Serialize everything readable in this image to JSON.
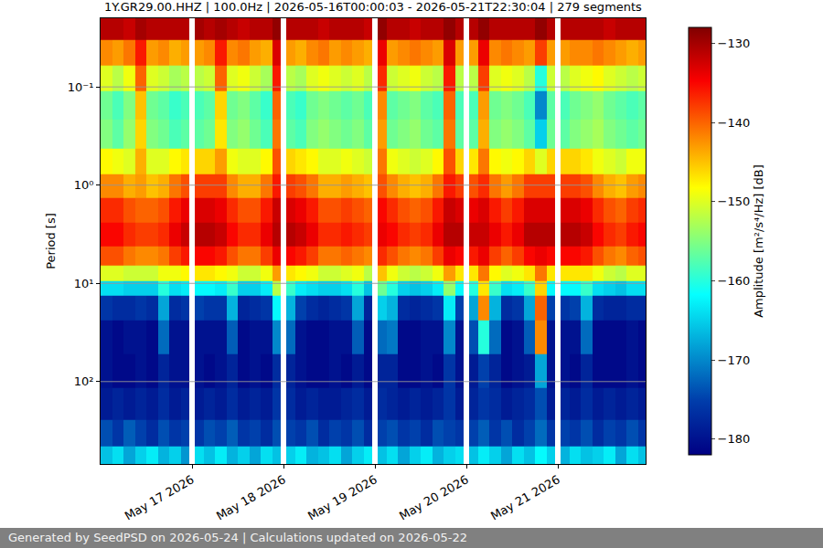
{
  "chart_data": {
    "type": "heatmap",
    "title": "1Y.GR29.00.HHZ | 100.0Hz | 2026-05-16T00:00:03 - 2026-05-21T22:30:04 | 279 segments",
    "y_label": "Period [s]",
    "log": "y",
    "grid": true,
    "x": [
      "2026-05-16 01:30",
      "2026-05-16 04:30",
      "2026-05-16 07:30",
      "2026-05-16 10:30",
      "2026-05-16 13:30",
      "2026-05-16 16:30",
      "2026-05-16 19:30",
      "2026-05-16 22:30",
      "2026-05-17 00:00",
      "2026-05-17 01:30",
      "2026-05-17 04:30",
      "2026-05-17 07:30",
      "2026-05-17 10:30",
      "2026-05-17 13:30",
      "2026-05-17 16:30",
      "2026-05-17 19:30",
      "2026-05-17 22:30",
      "2026-05-18 00:00",
      "2026-05-18 01:30",
      "2026-05-18 04:30",
      "2026-05-18 07:30",
      "2026-05-18 10:30",
      "2026-05-18 13:30",
      "2026-05-18 16:30",
      "2026-05-18 19:30",
      "2026-05-18 22:30",
      "2026-05-19 00:00",
      "2026-05-19 01:30",
      "2026-05-19 04:30",
      "2026-05-19 07:30",
      "2026-05-19 10:30",
      "2026-05-19 13:30",
      "2026-05-19 16:30",
      "2026-05-19 19:30",
      "2026-05-19 22:30",
      "2026-05-20 00:00",
      "2026-05-20 01:30",
      "2026-05-20 04:30",
      "2026-05-20 07:30",
      "2026-05-20 10:30",
      "2026-05-20 13:30",
      "2026-05-20 16:30",
      "2026-05-20 19:30",
      "2026-05-20 22:30",
      "2026-05-21 00:00",
      "2026-05-21 01:30",
      "2026-05-21 04:30",
      "2026-05-21 07:30",
      "2026-05-21 10:30",
      "2026-05-21 13:30",
      "2026-05-21 16:30",
      "2026-05-21 19:30",
      "2026-05-21 22:30"
    ],
    "y": [
      0.025,
      0.045,
      0.08,
      0.15,
      0.3,
      0.6,
      1,
      1.8,
      3.2,
      5.5,
      8,
      11,
      16,
      35,
      80,
      170,
      350,
      600
    ],
    "z": [
      [
        -131,
        -131,
        -132,
        -130,
        -131,
        -131,
        -131,
        -131,
        null,
        -130,
        -131,
        -130,
        -131,
        -132,
        -131,
        -131,
        -129,
        null,
        -131,
        -131,
        -131,
        -132,
        -131,
        -131,
        -131,
        -132,
        null,
        -129,
        -131,
        -131,
        -132,
        -131,
        -131,
        -129,
        -131,
        null,
        -131,
        -129,
        -131,
        -131,
        -131,
        -131,
        -129,
        -131,
        null,
        -131,
        -131,
        -131,
        -131,
        -132,
        -131,
        -131,
        -131
      ],
      [
        -142,
        -143,
        -141,
        -136,
        -143,
        -142,
        -144,
        -143,
        null,
        -143,
        -142,
        -136,
        -142,
        -141,
        -143,
        -144,
        -133,
        null,
        -143,
        -144,
        -142,
        -141,
        -143,
        -142,
        -143,
        -144,
        null,
        -134,
        -143,
        -142,
        -141,
        -142,
        -143,
        -133,
        -143,
        null,
        -143,
        -134,
        -142,
        -141,
        -142,
        -143,
        -138,
        -143,
        null,
        -143,
        -142,
        -142,
        -141,
        -142,
        -143,
        -144,
        -143
      ],
      [
        -150,
        -152,
        -149,
        -140,
        -150,
        -151,
        -153,
        -152,
        null,
        -152,
        -151,
        -140,
        -150,
        -149,
        -151,
        -153,
        -136,
        null,
        -152,
        -153,
        -150,
        -149,
        -150,
        -151,
        -150,
        -152,
        null,
        -137,
        -151,
        -150,
        -149,
        -151,
        -152,
        -136,
        -152,
        null,
        -152,
        -138,
        -150,
        -149,
        -150,
        -152,
        -160,
        -151,
        null,
        -152,
        -150,
        -149,
        -148,
        -150,
        -151,
        -152,
        -151
      ],
      [
        -156,
        -158,
        -155,
        -145,
        -156,
        -157,
        -159,
        -158,
        null,
        -158,
        -157,
        -146,
        -156,
        -155,
        -157,
        -159,
        -140,
        null,
        -158,
        -159,
        -156,
        -155,
        -156,
        -157,
        -156,
        -158,
        null,
        -142,
        -157,
        -156,
        -155,
        -157,
        -158,
        -140,
        -158,
        null,
        -158,
        -143,
        -156,
        -155,
        -156,
        -158,
        -170,
        -157,
        null,
        -158,
        -156,
        -155,
        -154,
        -156,
        -157,
        -158,
        -157
      ],
      [
        -155,
        -157,
        -154,
        -146,
        -155,
        -156,
        -158,
        -157,
        null,
        -157,
        -156,
        -147,
        -155,
        -154,
        -156,
        -158,
        -141,
        null,
        -157,
        -158,
        -155,
        -154,
        -155,
        -156,
        -155,
        -157,
        null,
        -143,
        -156,
        -155,
        -154,
        -156,
        -157,
        -141,
        -157,
        null,
        -157,
        -144,
        -155,
        -154,
        -155,
        -157,
        -165,
        -156,
        null,
        -157,
        -155,
        -154,
        -153,
        -155,
        -156,
        -157,
        -156
      ],
      [
        -148,
        -149,
        -150,
        -144,
        -150,
        -150,
        -148,
        -147,
        null,
        -146,
        -146,
        -143,
        -149,
        -150,
        -150,
        -148,
        -139,
        null,
        -146,
        -147,
        -148,
        -150,
        -150,
        -149,
        -150,
        -151,
        null,
        -141,
        -149,
        -150,
        -151,
        -150,
        -148,
        -139,
        -146,
        null,
        -147,
        -141,
        -148,
        -149,
        -148,
        -146,
        -150,
        -146,
        null,
        -146,
        -146,
        -147,
        -149,
        -150,
        -151,
        -149,
        -149
      ],
      [
        -142,
        -142,
        -144,
        -143,
        -145,
        -144,
        -141,
        -139,
        null,
        -138,
        -138,
        -138,
        -142,
        -144,
        -144,
        -141,
        -136,
        null,
        -138,
        -139,
        -141,
        -144,
        -144,
        -143,
        -144,
        -145,
        null,
        -139,
        -142,
        -144,
        -145,
        -144,
        -141,
        -136,
        -138,
        null,
        -139,
        -137,
        -141,
        -143,
        -141,
        -138,
        -138,
        -138,
        null,
        -138,
        -138,
        -139,
        -142,
        -144,
        -145,
        -143,
        -142
      ],
      [
        -137,
        -137,
        -139,
        -140,
        -140,
        -139,
        -136,
        -134,
        null,
        -133,
        -133,
        -134,
        -137,
        -139,
        -139,
        -136,
        -132,
        null,
        -133,
        -134,
        -136,
        -139,
        -139,
        -138,
        -139,
        -140,
        null,
        -135,
        -137,
        -139,
        -140,
        -139,
        -136,
        -132,
        -133,
        null,
        -134,
        -133,
        -136,
        -138,
        -136,
        -133,
        -133,
        -133,
        null,
        -133,
        -133,
        -134,
        -137,
        -139,
        -140,
        -138,
        -137
      ],
      [
        -135,
        -135,
        -137,
        -138,
        -138,
        -137,
        -134,
        -132,
        null,
        -131,
        -131,
        -132,
        -135,
        -137,
        -137,
        -134,
        -131,
        null,
        -131,
        -132,
        -134,
        -137,
        -137,
        -136,
        -137,
        -138,
        null,
        -134,
        -135,
        -137,
        -138,
        -137,
        -134,
        -131,
        -131,
        null,
        -132,
        -132,
        -134,
        -136,
        -134,
        -131,
        -131,
        -131,
        null,
        -131,
        -131,
        -132,
        -135,
        -137,
        -138,
        -136,
        -135
      ],
      [
        -139,
        -139,
        -141,
        -142,
        -142,
        -141,
        -138,
        -136,
        null,
        -135,
        -135,
        -136,
        -139,
        -141,
        -141,
        -138,
        -134,
        null,
        -135,
        -136,
        -138,
        -141,
        -141,
        -140,
        -141,
        -142,
        null,
        -137,
        -139,
        -141,
        -142,
        -141,
        -138,
        -134,
        -135,
        null,
        -136,
        -134,
        -138,
        -140,
        -138,
        -135,
        -134,
        -135,
        null,
        -135,
        -135,
        -136,
        -139,
        -141,
        -142,
        -140,
        -139
      ],
      [
        -150,
        -150,
        -151,
        -151,
        -151,
        -149,
        -149,
        -148,
        null,
        -147,
        -147,
        -148,
        -149,
        -151,
        -151,
        -149,
        -143,
        null,
        -147,
        -148,
        -149,
        -151,
        -151,
        -150,
        -149,
        -152,
        null,
        -145,
        -149,
        -151,
        -152,
        -151,
        -149,
        -143,
        -147,
        null,
        -147,
        -141,
        -148,
        -150,
        -149,
        -147,
        -141,
        -147,
        null,
        -147,
        -147,
        -147,
        -149,
        -151,
        -152,
        -150,
        -150
      ],
      [
        -164,
        -164,
        -165,
        -165,
        -165,
        -160,
        -164,
        -163,
        null,
        -162,
        -162,
        -163,
        -159,
        -165,
        -165,
        -163,
        -152,
        null,
        -159,
        -163,
        -164,
        -165,
        -165,
        -164,
        -160,
        -166,
        null,
        -156,
        -160,
        -165,
        -166,
        -165,
        -163,
        -154,
        -162,
        null,
        -160,
        -147,
        -159,
        -164,
        -163,
        -159,
        -146,
        -162,
        null,
        -162,
        -162,
        -159,
        -164,
        -165,
        -166,
        -164,
        -164
      ],
      [
        -176,
        -177,
        -177,
        -176,
        -177,
        -168,
        -177,
        -176,
        null,
        -175,
        -176,
        -176,
        -167,
        -178,
        -177,
        -176,
        -162,
        null,
        -167,
        -175,
        -177,
        -178,
        -177,
        -176,
        -168,
        -178,
        null,
        -165,
        -167,
        -177,
        -178,
        -177,
        -176,
        -163,
        -175,
        null,
        -168,
        -142,
        -167,
        -177,
        -176,
        -168,
        -140,
        -175,
        null,
        -176,
        -175,
        -167,
        -177,
        -178,
        -178,
        -177,
        -177
      ],
      [
        -180,
        -181,
        -180,
        -180,
        -181,
        -172,
        -180,
        -180,
        null,
        -180,
        -180,
        -180,
        -173,
        -181,
        -180,
        -180,
        -170,
        null,
        -172,
        -180,
        -181,
        -181,
        -180,
        -180,
        -173,
        -181,
        null,
        -172,
        -171,
        -181,
        -181,
        -180,
        -180,
        -170,
        -180,
        null,
        -174,
        -160,
        -172,
        -181,
        -180,
        -173,
        -142,
        -180,
        null,
        -180,
        -180,
        -172,
        -181,
        -181,
        -181,
        -180,
        -181
      ],
      [
        -180,
        -181,
        -181,
        -180,
        -181,
        -178,
        -180,
        -180,
        null,
        -180,
        -181,
        -180,
        -178,
        -181,
        -180,
        -181,
        -177,
        null,
        -178,
        -180,
        -181,
        -181,
        -180,
        -181,
        -179,
        -181,
        null,
        -178,
        -178,
        -181,
        -181,
        -180,
        -181,
        -176,
        -180,
        null,
        -179,
        -175,
        -178,
        -181,
        -180,
        -179,
        -168,
        -180,
        null,
        -180,
        -181,
        -178,
        -181,
        -181,
        -181,
        -180,
        -181
      ],
      [
        -179,
        -178,
        -179,
        -178,
        -179,
        -177,
        -179,
        -178,
        null,
        -179,
        -178,
        -179,
        -177,
        -179,
        -178,
        -179,
        -176,
        null,
        -177,
        -179,
        -178,
        -179,
        -179,
        -178,
        -177,
        -179,
        null,
        -177,
        -178,
        -179,
        -178,
        -179,
        -178,
        -176,
        -179,
        null,
        -178,
        -176,
        -177,
        -179,
        -178,
        -177,
        -174,
        -179,
        null,
        -178,
        -179,
        -177,
        -179,
        -178,
        -179,
        -178,
        -179
      ],
      [
        -174,
        -176,
        -173,
        -175,
        -177,
        -174,
        -176,
        -175,
        null,
        -176,
        -174,
        -175,
        -173,
        -176,
        -175,
        -177,
        -174,
        null,
        -175,
        -176,
        -174,
        -177,
        -175,
        -176,
        -174,
        -177,
        null,
        -175,
        -174,
        -176,
        -175,
        -177,
        -174,
        -175,
        -176,
        null,
        -175,
        -173,
        -176,
        -174,
        -177,
        -175,
        -172,
        -176,
        null,
        -175,
        -176,
        -174,
        -177,
        -175,
        -176,
        -174,
        -176
      ],
      [
        -166,
        -164,
        -168,
        -165,
        -163,
        -167,
        -165,
        -169,
        null,
        -164,
        -166,
        -163,
        -167,
        -165,
        -168,
        -164,
        -166,
        null,
        -165,
        -163,
        -167,
        -166,
        -164,
        -168,
        -165,
        -163,
        null,
        -166,
        -164,
        -168,
        -165,
        -163,
        -167,
        -165,
        -164,
        null,
        -166,
        -163,
        -165,
        -168,
        -164,
        -166,
        -162,
        -165,
        null,
        -167,
        -164,
        -166,
        -165,
        -163,
        -168,
        -164,
        -166
      ]
    ],
    "xlim": [
      "2026-05-16 00:00",
      "2026-05-21 23:00"
    ],
    "xticks": [
      {
        "value": "2026-05-17",
        "label": "May 17 2026"
      },
      {
        "value": "2026-05-18",
        "label": "May 18 2026"
      },
      {
        "value": "2026-05-19",
        "label": "May 19 2026"
      },
      {
        "value": "2026-05-20",
        "label": "May 20 2026"
      },
      {
        "value": "2026-05-21",
        "label": "May 21 2026"
      }
    ],
    "ylim": [
      690,
      0.02
    ],
    "yticks": [
      {
        "value": 0.1,
        "label": "10⁻¹"
      },
      {
        "value": 1,
        "label": "10⁰"
      },
      {
        "value": 10,
        "label": "10¹"
      },
      {
        "value": 100,
        "label": "10²"
      }
    ],
    "colorbar": {
      "title": "Amplitude [m²/s⁴/Hz] [dB]",
      "range": [
        -182,
        -128
      ],
      "ticks": [
        -130,
        -140,
        -150,
        -160,
        -170,
        -180
      ]
    }
  },
  "footer": "Generated by SeedPSD on 2026-05-24 | Calculations updated on 2026-05-22"
}
